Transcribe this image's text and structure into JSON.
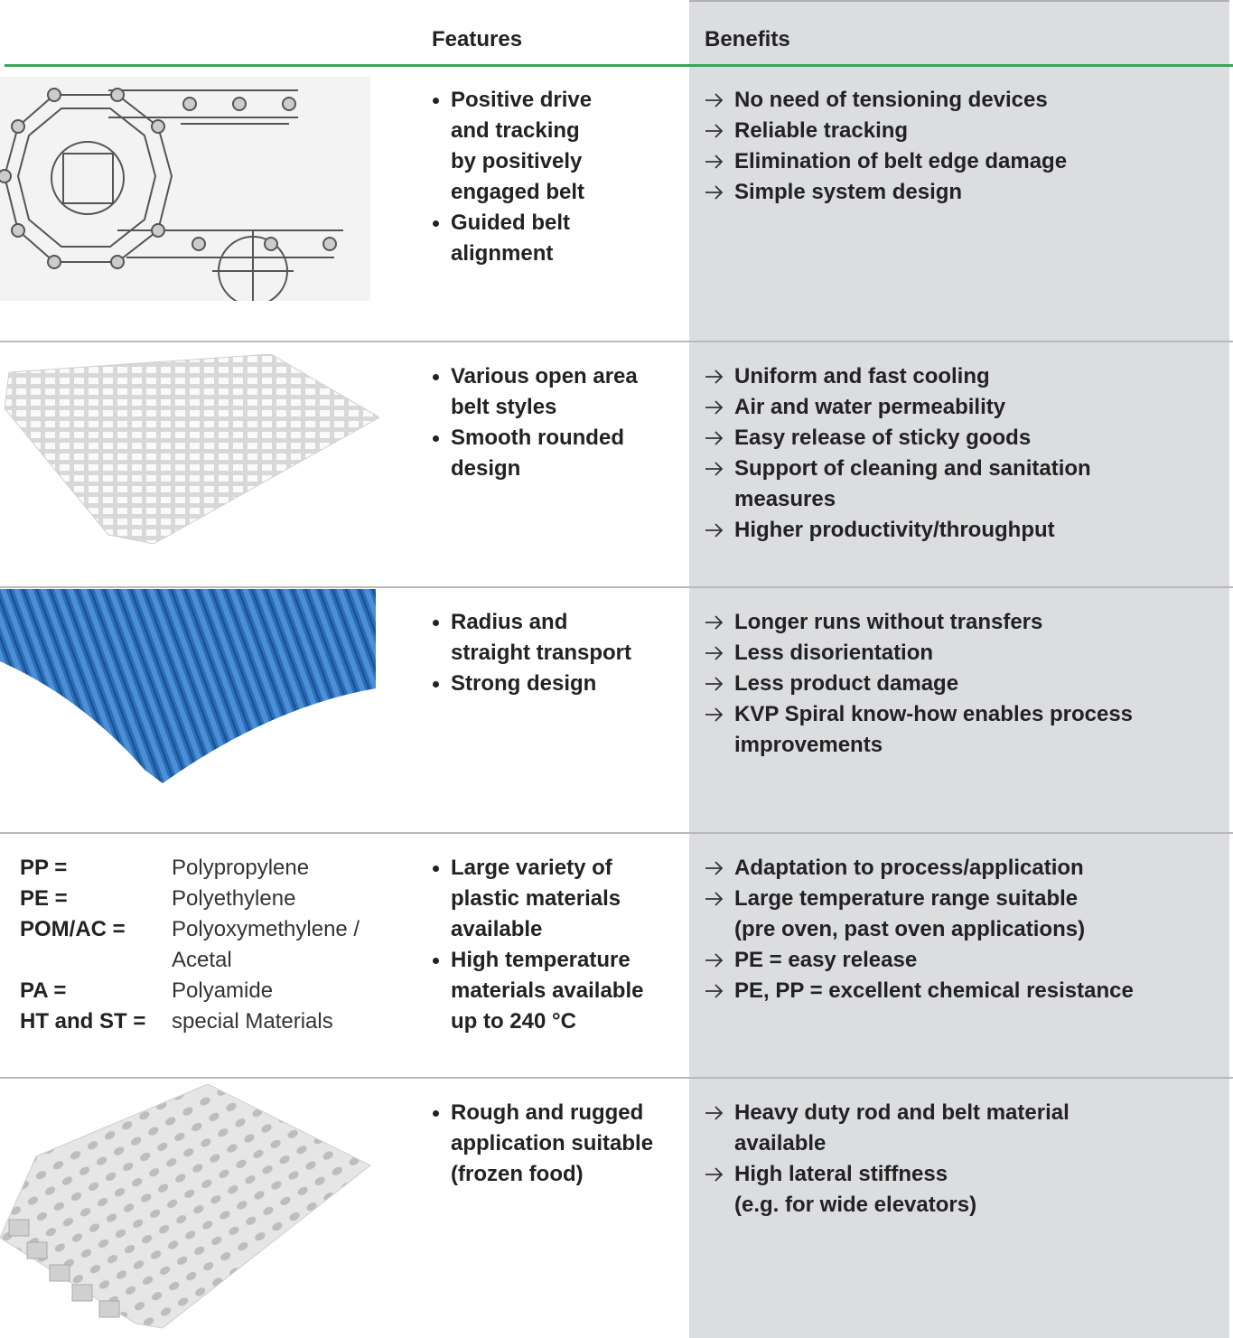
{
  "header": {
    "features": "Features",
    "benefits": "Benefits"
  },
  "rows": [
    {
      "features": [
        "Positive drive\nand tracking\nby positively\nengaged belt",
        "Guided belt\nalignment"
      ],
      "benefits": [
        "No need of tensioning devices",
        "Reliable tracking",
        "Elimination of belt edge damage",
        "Simple system design"
      ]
    },
    {
      "features": [
        "Various open area\nbelt styles",
        "Smooth rounded\ndesign"
      ],
      "benefits": [
        "Uniform and fast cooling",
        "Air and water permeability",
        "Easy release of sticky goods",
        "Support of cleaning and sanitation\nmeasures",
        "Higher productivity/throughput"
      ]
    },
    {
      "features": [
        "Radius and\nstraight transport",
        "Strong design"
      ],
      "benefits": [
        "Longer runs without transfers",
        "Less disorientation",
        "Less product damage",
        "KVP Spiral know-how enables process\nimprovements"
      ]
    },
    {
      "materials": [
        {
          "abbr": "PP =",
          "name": "Polypropylene"
        },
        {
          "abbr": "PE =",
          "name": "Polyethylene"
        },
        {
          "abbr": "POM/AC =",
          "name": "Polyoxymethylene /\nAcetal"
        },
        {
          "abbr": "PA =",
          "name": "Polyamide"
        },
        {
          "abbr": "HT and ST =",
          "name": "special Materials"
        }
      ],
      "features": [
        "Large variety of\nplastic materials\navailable",
        "High temperature\nmaterials available\nup to 240 °C"
      ],
      "benefits": [
        "Adaptation to process/application",
        "Large temperature range suitable\n(pre oven, past oven applications)",
        "PE = easy release",
        "PE, PP = excellent chemical resistance"
      ]
    },
    {
      "features": [
        "Rough and rugged\napplication suitable\n(frozen food)"
      ],
      "benefits": [
        "Heavy duty rod and belt material\navailable",
        "High lateral stiffness\n(e.g. for wide elevators)"
      ]
    }
  ]
}
